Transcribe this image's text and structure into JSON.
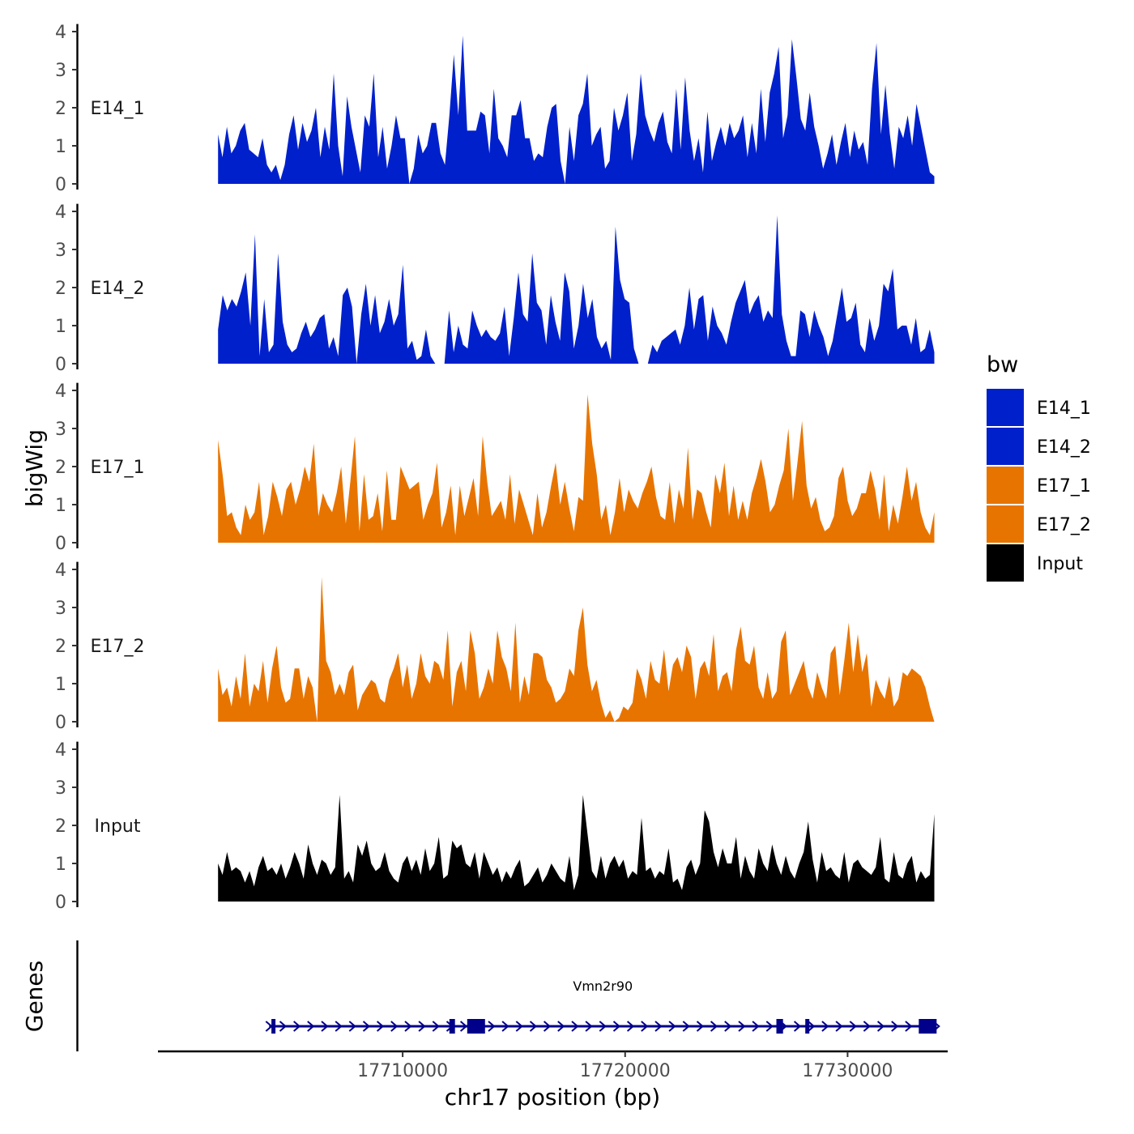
{
  "chart_data": {
    "type": "area",
    "region": {
      "chrom": "chr17",
      "start": 17701700,
      "end": 17733900
    },
    "xlim": [
      17699000,
      17734500
    ],
    "ylim": [
      0,
      4.2
    ],
    "y_ticks": [
      0,
      1,
      2,
      3,
      4
    ],
    "x_ticks": [
      17710000,
      17720000,
      17730000
    ],
    "x_tick_labels": [
      "17710000",
      "17720000",
      "17730000"
    ],
    "xlabel": "chr17 position (bp)",
    "ylabel": "bigWig",
    "genes_label": "Genes",
    "legend": {
      "title": "bw",
      "position": "right",
      "entries": [
        {
          "name": "E14_1",
          "color": "#0020CC"
        },
        {
          "name": "E14_2",
          "color": "#0020CC"
        },
        {
          "name": "E17_1",
          "color": "#E87400"
        },
        {
          "name": "E17_2",
          "color": "#E87400"
        },
        {
          "name": "Input",
          "color": "#000000"
        }
      ]
    },
    "series": [
      {
        "name": "E14_1",
        "color": "#0020CC",
        "values": [
          1.3,
          0.7,
          1.5,
          0.8,
          1.0,
          1.4,
          1.6,
          0.9,
          0.8,
          0.7,
          1.2,
          0.5,
          0.3,
          0.5,
          0.1,
          0.5,
          1.3,
          1.8,
          0.9,
          1.6,
          1.1,
          1.4,
          2.0,
          0.7,
          1.5,
          0.9,
          2.9,
          1.0,
          0.2,
          2.3,
          1.5,
          0.9,
          0.3,
          1.8,
          1.5,
          2.9,
          0.7,
          1.5,
          0.4,
          1.0,
          1.8,
          1.2,
          1.2,
          0.0,
          0.4,
          1.3,
          0.8,
          1.0,
          1.6,
          1.6,
          0.8,
          0.5,
          1.8,
          3.4,
          1.8,
          3.9,
          1.4,
          1.4,
          1.4,
          1.9,
          1.8,
          0.8,
          2.5,
          1.2,
          1.0,
          0.7,
          1.8,
          1.8,
          2.2,
          1.2,
          1.2,
          0.6,
          0.8,
          0.7,
          1.5,
          2.0,
          2.1,
          0.6,
          0.0,
          1.5,
          0.6,
          1.8,
          2.1,
          2.9,
          1.0,
          1.3,
          1.5,
          0.4,
          0.6,
          2.0,
          1.4,
          1.8,
          2.4,
          0.6,
          1.3,
          2.9,
          1.8,
          1.4,
          1.1,
          1.6,
          1.9,
          1.1,
          0.8,
          2.5,
          0.9,
          2.8,
          1.4,
          0.6,
          1.2,
          0.3,
          1.9,
          0.6,
          1.1,
          1.5,
          1.0,
          1.6,
          1.2,
          1.4,
          1.8,
          0.7,
          1.6,
          0.8,
          2.5,
          1.1,
          2.4,
          2.9,
          3.6,
          1.2,
          1.8,
          3.8,
          2.8,
          1.7,
          1.4,
          2.4,
          1.5,
          1.0,
          0.4,
          0.8,
          1.3,
          0.5,
          1.1,
          1.6,
          0.7,
          1.4,
          0.9,
          1.1,
          0.5,
          2.5,
          3.7,
          1.3,
          2.6,
          1.3,
          0.4,
          1.5,
          1.2,
          1.8,
          1.0,
          2.1,
          1.5,
          0.9,
          0.3,
          0.2
        ],
        "label": "E14_1"
      },
      {
        "name": "E14_2",
        "color": "#0020CC",
        "values": [
          0.9,
          1.8,
          1.4,
          1.7,
          1.5,
          1.9,
          2.4,
          1.0,
          3.4,
          0.2,
          1.7,
          0.3,
          0.5,
          2.9,
          1.1,
          0.5,
          0.3,
          0.4,
          0.8,
          1.1,
          0.7,
          0.9,
          1.2,
          1.3,
          0.4,
          0.7,
          0.2,
          1.8,
          2.0,
          1.5,
          0.0,
          1.3,
          2.1,
          1.0,
          1.8,
          0.8,
          1.1,
          1.7,
          1.0,
          1.3,
          2.6,
          0.4,
          0.6,
          0.1,
          0.2,
          0.9,
          0.2,
          0.0,
          0.0,
          0.0,
          1.4,
          0.3,
          1.0,
          0.5,
          0.4,
          1.4,
          1.0,
          0.7,
          0.9,
          0.7,
          0.6,
          0.8,
          1.5,
          0.2,
          1.2,
          2.4,
          1.3,
          1.1,
          2.9,
          1.6,
          1.4,
          0.5,
          1.8,
          1.1,
          0.6,
          2.4,
          1.9,
          0.4,
          1.0,
          2.1,
          1.2,
          1.7,
          0.7,
          0.4,
          0.6,
          0.1,
          3.6,
          2.2,
          1.7,
          1.6,
          0.4,
          0.0,
          0.0,
          0.0,
          0.5,
          0.3,
          0.6,
          0.7,
          0.8,
          0.9,
          0.5,
          1.0,
          2.0,
          0.9,
          1.7,
          1.8,
          0.6,
          1.5,
          1.0,
          0.8,
          0.5,
          1.1,
          1.6,
          1.9,
          2.2,
          1.3,
          1.6,
          1.8,
          1.1,
          1.4,
          1.2,
          3.9,
          1.3,
          0.6,
          0.2,
          0.2,
          1.4,
          1.3,
          0.7,
          1.4,
          1.0,
          0.7,
          0.2,
          0.6,
          1.3,
          2.0,
          1.1,
          1.2,
          1.6,
          0.5,
          0.3,
          1.2,
          0.6,
          1.0,
          2.1,
          1.9,
          2.5,
          0.9,
          1.0,
          1.0,
          0.5,
          1.2,
          0.3,
          0.4,
          0.9,
          0.3
        ],
        "label": "E14_2"
      },
      {
        "name": "E17_1",
        "color": "#E87400",
        "values": [
          2.7,
          1.8,
          0.7,
          0.8,
          0.4,
          0.2,
          1.0,
          0.6,
          0.8,
          1.6,
          0.2,
          0.7,
          1.6,
          1.2,
          0.7,
          1.4,
          1.6,
          1.0,
          1.4,
          2.0,
          1.6,
          2.6,
          0.7,
          1.3,
          1.0,
          0.8,
          1.3,
          2.0,
          0.5,
          1.6,
          2.8,
          0.3,
          1.8,
          0.6,
          0.7,
          1.3,
          0.3,
          1.9,
          0.6,
          0.6,
          2.0,
          1.7,
          1.4,
          1.5,
          1.6,
          0.6,
          1.0,
          1.3,
          2.1,
          0.4,
          0.8,
          1.5,
          0.2,
          1.5,
          0.7,
          1.2,
          1.7,
          0.7,
          2.8,
          1.6,
          0.7,
          0.9,
          1.1,
          0.6,
          1.8,
          0.5,
          1.4,
          1.0,
          0.6,
          0.2,
          1.3,
          0.4,
          0.8,
          1.5,
          2.1,
          1.0,
          1.6,
          0.9,
          0.3,
          1.2,
          1.1,
          3.9,
          2.6,
          1.8,
          0.6,
          1.0,
          0.2,
          0.8,
          1.7,
          0.8,
          1.4,
          1.1,
          0.9,
          1.3,
          1.6,
          2.0,
          1.2,
          0.7,
          0.6,
          1.6,
          0.5,
          1.4,
          0.9,
          2.5,
          0.6,
          1.4,
          1.3,
          0.8,
          0.4,
          1.8,
          1.3,
          2.1,
          0.7,
          1.5,
          0.6,
          1.1,
          0.6,
          1.3,
          1.7,
          2.2,
          1.6,
          0.8,
          1.0,
          1.5,
          1.9,
          3.0,
          1.1,
          2.1,
          3.2,
          1.5,
          0.9,
          1.2,
          0.6,
          0.3,
          0.4,
          0.7,
          1.7,
          2.0,
          1.1,
          0.7,
          0.9,
          1.3,
          1.3,
          1.9,
          1.4,
          0.6,
          1.8,
          0.3,
          1.0,
          0.5,
          1.2,
          2.0,
          1.1,
          1.6,
          0.8,
          0.4,
          0.2,
          0.8
        ],
        "label": "E17_1"
      },
      {
        "name": "E17_2",
        "color": "#E87400",
        "values": [
          1.4,
          0.7,
          0.9,
          0.4,
          1.2,
          0.6,
          1.8,
          0.4,
          1.0,
          0.8,
          1.6,
          0.5,
          1.4,
          2.0,
          0.9,
          0.5,
          0.6,
          1.4,
          1.4,
          0.6,
          1.2,
          0.9,
          0.0,
          3.8,
          1.6,
          1.3,
          0.7,
          1.0,
          0.7,
          1.3,
          1.5,
          0.3,
          0.7,
          0.9,
          1.1,
          1.0,
          0.6,
          0.5,
          1.1,
          1.4,
          1.8,
          0.9,
          1.5,
          0.6,
          1.0,
          1.8,
          1.2,
          1.0,
          1.6,
          1.5,
          1.1,
          2.4,
          0.4,
          1.3,
          1.6,
          0.8,
          2.4,
          1.8,
          0.6,
          0.9,
          1.4,
          1.0,
          2.4,
          1.7,
          1.4,
          0.8,
          2.6,
          0.5,
          1.2,
          0.7,
          1.8,
          1.8,
          1.7,
          1.1,
          0.9,
          0.5,
          0.6,
          0.8,
          1.4,
          1.2,
          2.4,
          3.0,
          1.5,
          0.8,
          1.1,
          0.5,
          0.1,
          0.3,
          0.0,
          0.1,
          0.4,
          0.3,
          0.5,
          1.4,
          1.1,
          0.6,
          1.6,
          1.1,
          1.0,
          1.9,
          0.8,
          1.5,
          1.7,
          1.3,
          2.0,
          1.7,
          0.6,
          1.4,
          1.6,
          1.2,
          2.3,
          0.8,
          1.2,
          1.3,
          0.8,
          1.9,
          2.5,
          1.6,
          1.5,
          2.0,
          0.9,
          0.6,
          1.3,
          0.6,
          0.8,
          2.1,
          2.4,
          0.7,
          1.0,
          1.3,
          1.6,
          0.9,
          0.6,
          1.3,
          0.9,
          0.6,
          1.8,
          2.0,
          0.7,
          1.6,
          2.6,
          1.3,
          2.3,
          1.3,
          1.8,
          0.4,
          1.1,
          0.8,
          0.6,
          1.2,
          0.4,
          0.6,
          1.3,
          1.2,
          1.4,
          1.3,
          1.2,
          0.9,
          0.4,
          0.0
        ],
        "label": "E17_2"
      },
      {
        "name": "Input",
        "color": "#000000",
        "values": [
          1.0,
          0.7,
          1.3,
          0.8,
          0.9,
          0.8,
          0.5,
          0.8,
          0.4,
          0.9,
          1.2,
          0.8,
          0.9,
          0.7,
          1.0,
          0.6,
          0.9,
          1.3,
          1.0,
          0.6,
          1.5,
          1.0,
          0.7,
          1.1,
          1.0,
          0.7,
          0.9,
          2.8,
          0.6,
          0.8,
          0.5,
          1.5,
          1.2,
          1.6,
          1.0,
          0.8,
          0.9,
          1.3,
          0.8,
          0.6,
          0.5,
          1.0,
          1.2,
          0.8,
          1.1,
          0.7,
          1.4,
          0.8,
          1.0,
          1.7,
          0.6,
          0.7,
          1.6,
          1.4,
          1.5,
          1.0,
          0.9,
          1.3,
          0.6,
          1.3,
          1.0,
          0.7,
          0.9,
          0.5,
          0.8,
          0.6,
          0.9,
          1.1,
          0.4,
          0.5,
          0.7,
          0.9,
          0.5,
          0.7,
          1.0,
          0.8,
          0.6,
          0.5,
          1.2,
          0.3,
          0.7,
          2.8,
          1.8,
          0.8,
          0.6,
          1.2,
          0.6,
          1.0,
          1.2,
          0.9,
          1.1,
          0.6,
          0.8,
          0.7,
          2.2,
          0.8,
          0.9,
          0.6,
          0.8,
          0.7,
          1.4,
          0.5,
          0.6,
          0.3,
          0.9,
          1.1,
          0.7,
          1.0,
          2.4,
          2.1,
          1.3,
          0.9,
          1.4,
          1.0,
          1.0,
          1.7,
          0.6,
          1.2,
          0.8,
          0.6,
          1.4,
          1.0,
          0.8,
          1.5,
          1.0,
          0.7,
          1.2,
          0.8,
          0.6,
          1.0,
          1.3,
          2.1,
          1.1,
          0.5,
          1.3,
          0.8,
          0.9,
          0.7,
          0.6,
          1.3,
          0.5,
          1.0,
          1.1,
          0.9,
          0.8,
          0.7,
          0.9,
          1.7,
          0.6,
          0.5,
          1.3,
          0.7,
          0.6,
          1.0,
          1.2,
          0.5,
          0.8,
          0.6,
          0.7,
          2.3
        ],
        "label": "Input"
      }
    ],
    "gene": {
      "name": "Vmn2r90",
      "strand": "+",
      "start": 17704000,
      "end": 17734000,
      "exons": [
        [
          17704100,
          17704250
        ],
        [
          17712100,
          17712350
        ],
        [
          17712900,
          17713700
        ],
        [
          17726800,
          17727100
        ],
        [
          17728100,
          17728250
        ],
        [
          17733200,
          17734000
        ]
      ]
    }
  }
}
